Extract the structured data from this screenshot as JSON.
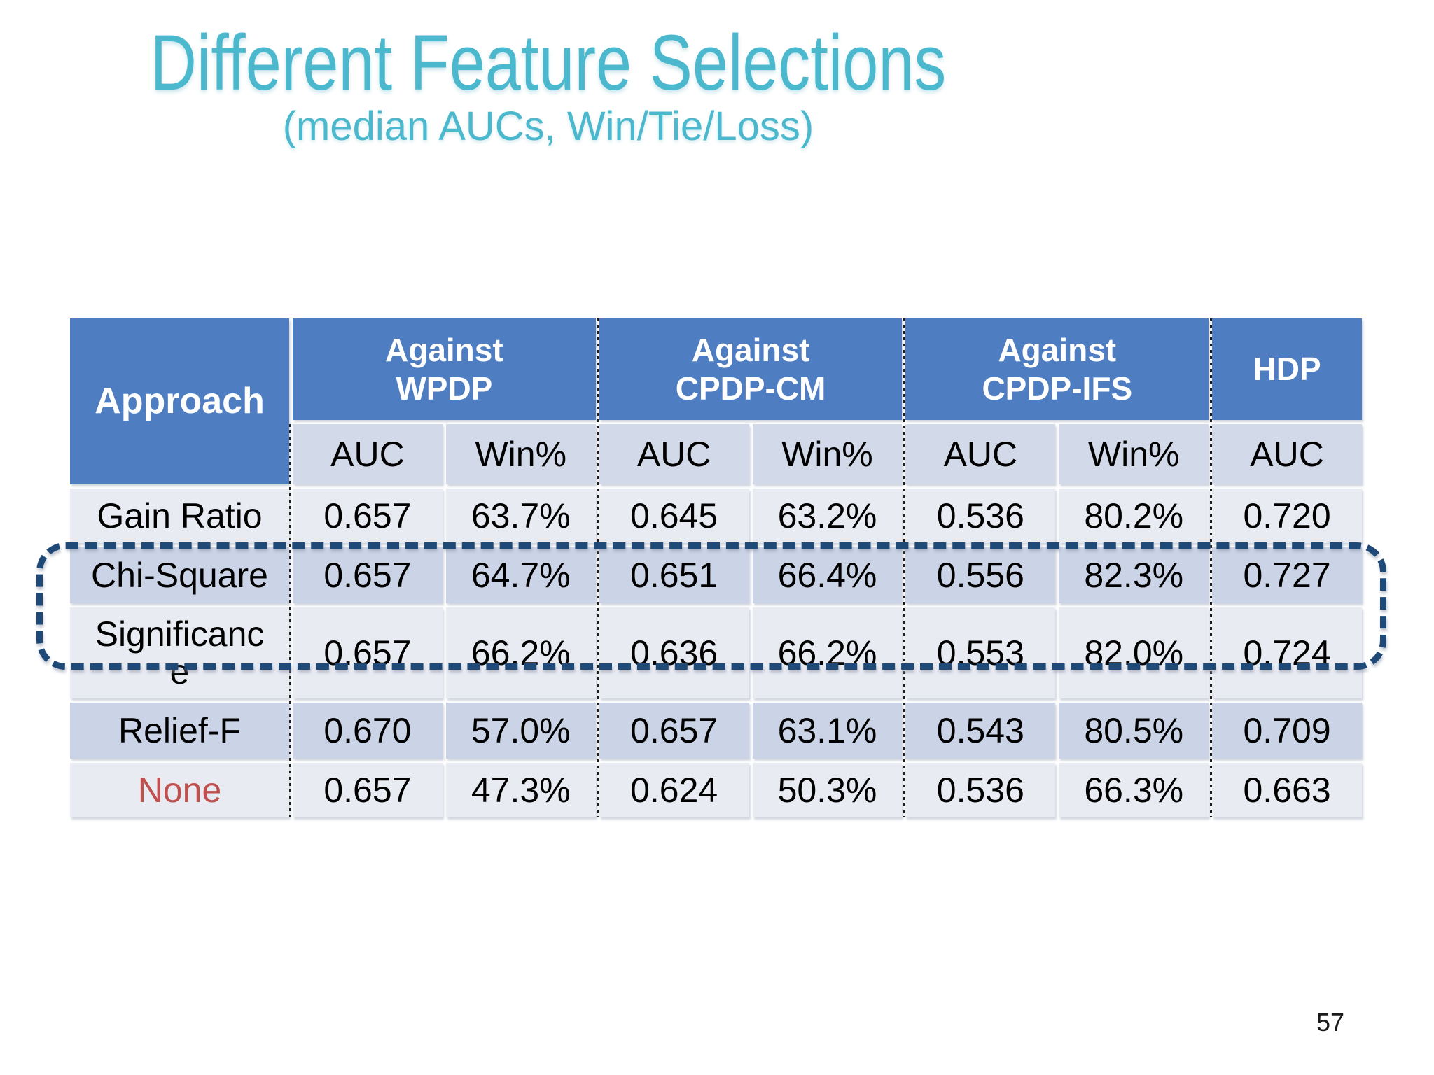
{
  "slide": {
    "title": "Different Feature Selections",
    "subtitle": "(median AUCs, Win/Tie/Loss)",
    "page_number": "57",
    "colors": {
      "title_teal": "#4BB8CD",
      "header_blue": "#4E7DC1",
      "subheader_bg": "#D2D9E8",
      "row_band_light": "#E9EBF3",
      "row_band_dark": "#CBD4E6",
      "highlight_dash_navy": "#1F4A78",
      "none_label_red": "#C0504D"
    }
  },
  "table": {
    "corner_header": "Approach",
    "group_headers": [
      {
        "lines": [
          "Against",
          "WPDP"
        ]
      },
      {
        "lines": [
          "Against",
          "CPDP-CM"
        ]
      },
      {
        "lines": [
          "Against",
          "CPDP-IFS"
        ]
      },
      {
        "lines": [
          "HDP"
        ]
      }
    ],
    "sub_headers": [
      "AUC",
      "Win%",
      "AUC",
      "Win%",
      "AUC",
      "Win%",
      "AUC"
    ],
    "rows": [
      {
        "approach": "Gain Ratio",
        "values": [
          "0.657",
          "63.7%",
          "0.645",
          "63.2%",
          "0.536",
          "80.2%",
          "0.720"
        ]
      },
      {
        "approach": "Chi-Square",
        "values": [
          "0.657",
          "64.7%",
          "0.651",
          "66.4%",
          "0.556",
          "82.3%",
          "0.727"
        ]
      },
      {
        "approach": "Significance",
        "values": [
          "0.657",
          "66.2%",
          "0.636",
          "66.2%",
          "0.553",
          "82.0%",
          "0.724"
        ]
      },
      {
        "approach": "Relief-F",
        "values": [
          "0.670",
          "57.0%",
          "0.657",
          "63.1%",
          "0.543",
          "80.5%",
          "0.709"
        ]
      },
      {
        "approach": "None",
        "values": [
          "0.657",
          "47.3%",
          "0.624",
          "50.3%",
          "0.536",
          "66.3%",
          "0.663"
        ]
      }
    ],
    "highlighted_rows": [
      "Chi-Square",
      "Significance"
    ]
  }
}
